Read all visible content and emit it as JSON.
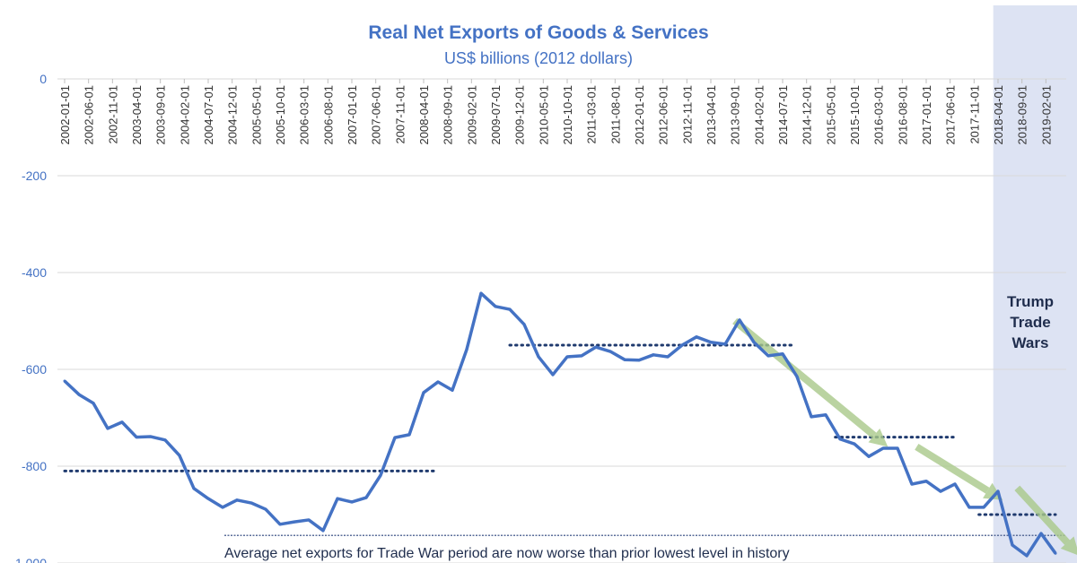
{
  "chart_data": {
    "type": "line",
    "title": "Real Net Exports of Goods & Services",
    "subtitle": "US$ billions (2012 dollars)",
    "ylim": [
      -1000,
      0
    ],
    "yticks": [
      "0",
      "-200",
      "-400",
      "-600",
      "-800",
      "-1,000"
    ],
    "ytick_values": [
      0,
      -200,
      -400,
      -600,
      -800,
      -1000
    ],
    "grid": true,
    "line_color": "#4472c4",
    "xtick_labels": [
      "2002-01-01",
      "2002-06-01",
      "2002-11-01",
      "2003-04-01",
      "2003-09-01",
      "2004-02-01",
      "2004-07-01",
      "2004-12-01",
      "2005-05-01",
      "2005-10-01",
      "2006-03-01",
      "2006-08-01",
      "2007-01-01",
      "2007-06-01",
      "2007-11-01",
      "2008-04-01",
      "2008-09-01",
      "2009-02-01",
      "2009-07-01",
      "2009-12-01",
      "2010-05-01",
      "2010-10-01",
      "2011-03-01",
      "2011-08-01",
      "2012-01-01",
      "2012-06-01",
      "2012-11-01",
      "2013-04-01",
      "2013-09-01",
      "2014-02-01",
      "2014-07-01",
      "2014-12-01",
      "2015-05-01",
      "2015-10-01",
      "2016-03-01",
      "2016-08-01",
      "2017-01-01",
      "2017-06-01",
      "2017-11-01",
      "2018-04-01",
      "2018-09-01",
      "2019-02-01"
    ],
    "x_start": "2002-01-01",
    "x_frequency": "quarterly",
    "values": [
      -624,
      -652,
      -670,
      -722,
      -709,
      -740,
      -739,
      -746,
      -778,
      -846,
      -867,
      -885,
      -870,
      -876,
      -889,
      -920,
      -915,
      -911,
      -933,
      -867,
      -874,
      -865,
      -819,
      -741,
      -735,
      -648,
      -626,
      -643,
      -559,
      -443,
      -470,
      -476,
      -507,
      -574,
      -611,
      -574,
      -572,
      -554,
      -563,
      -580,
      -581,
      -570,
      -574,
      -550,
      -533,
      -544,
      -548,
      -498,
      -544,
      -572,
      -568,
      -615,
      -698,
      -694,
      -744,
      -754,
      -780,
      -763,
      -763,
      -837,
      -831,
      -852,
      -837,
      -885,
      -885,
      -852,
      -963,
      -985,
      -939,
      -980
    ],
    "average_lines": [
      {
        "value": -810,
        "from": "2002-01-01",
        "to": "2008-07-01"
      },
      {
        "value": -550,
        "from": "2009-10-01",
        "to": "2014-09-01"
      },
      {
        "value": -740,
        "from": "2015-06-01",
        "to": "2017-07-01"
      },
      {
        "value": -900,
        "from": "2017-12-01",
        "to": "2020-05-01"
      }
    ],
    "lowest_line": {
      "value": -943,
      "note": "Average net exports for Trade War period are now worse than prior lowest level in history"
    },
    "trend_arrows": [
      {
        "from": [
          "2013-09-01",
          -500
        ],
        "to": [
          "2016-05-01",
          -760
        ]
      },
      {
        "from": [
          "2016-11-01",
          -760
        ],
        "to": [
          "2018-05-01",
          -870
        ]
      },
      {
        "from": [
          "2018-08-01",
          -845
        ],
        "to": [
          "2019-09-01",
          -985
        ]
      }
    ],
    "trend_color": "#a9c98a",
    "shaded_region": {
      "from": "2018-03-01",
      "to": "2019-12-01",
      "label": [
        "Trump",
        "Trade",
        "Wars"
      ],
      "color": "#dde3f3"
    }
  }
}
